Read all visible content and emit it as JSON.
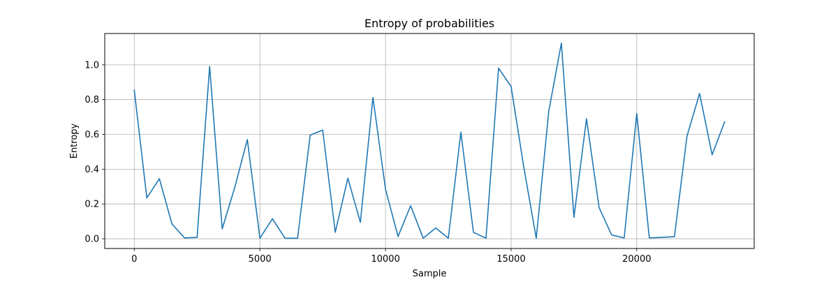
{
  "chart_data": {
    "type": "line",
    "title": "Entropy of probabilities",
    "xlabel": "Sample",
    "ylabel": "Entropy",
    "xlim": [
      -1175,
      24675
    ],
    "ylim": [
      -0.056,
      1.18
    ],
    "xticks": [
      0,
      5000,
      10000,
      15000,
      20000
    ],
    "yticks": [
      0.0,
      0.2,
      0.4,
      0.6,
      0.8,
      1.0
    ],
    "xtick_labels": [
      "0",
      "5000",
      "10000",
      "15000",
      "20000"
    ],
    "ytick_labels": [
      "0.0",
      "0.2",
      "0.4",
      "0.6",
      "0.8",
      "1.0"
    ],
    "grid": true,
    "series": [
      {
        "color": "#1f77b4",
        "x": [
          0,
          500,
          1000,
          1500,
          2000,
          2500,
          3000,
          3500,
          4000,
          4500,
          5000,
          5500,
          6000,
          6500,
          7000,
          7500,
          8000,
          8500,
          9000,
          9500,
          10000,
          10500,
          11000,
          11500,
          12000,
          12500,
          13000,
          13500,
          14000,
          14500,
          15000,
          15500,
          16000,
          16500,
          17000,
          17500,
          18000,
          18500,
          19000,
          19500,
          20000,
          20500,
          21000,
          21500,
          22000,
          22500,
          23000,
          23500
        ],
        "y": [
          0.855,
          0.235,
          0.345,
          0.085,
          0.005,
          0.008,
          0.99,
          0.057,
          0.295,
          0.57,
          0.003,
          0.115,
          0.003,
          0.003,
          0.595,
          0.625,
          0.037,
          0.348,
          0.095,
          0.812,
          0.285,
          0.013,
          0.19,
          0.003,
          0.062,
          0.003,
          0.613,
          0.037,
          0.003,
          0.98,
          0.875,
          0.415,
          0.003,
          0.735,
          1.125,
          0.123,
          0.69,
          0.18,
          0.022,
          0.005,
          0.72,
          0.005,
          0.008,
          0.012,
          0.59,
          0.835,
          0.483,
          0.672
        ]
      }
    ]
  }
}
